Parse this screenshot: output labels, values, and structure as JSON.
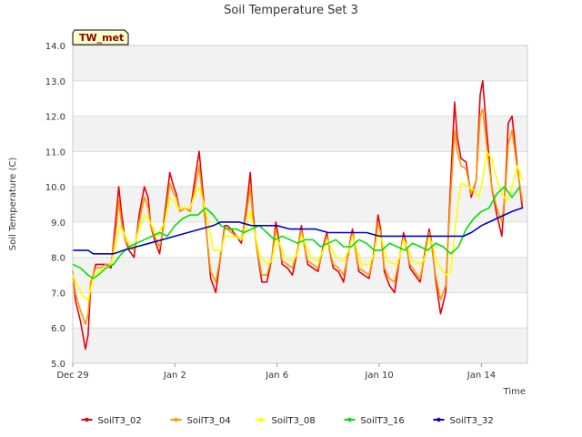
{
  "chart_data": {
    "type": "line",
    "title": "Soil Temperature Set 3",
    "xlabel": "Time",
    "ylabel": "Soil Temperature (C)",
    "station_label": "TW_met",
    "ylim": [
      5.0,
      14.0
    ],
    "xlim": [
      "Dec 29",
      "Jan 15.8"
    ],
    "x_day_range": [
      0,
      17.8
    ],
    "x_ticks": [
      {
        "day": 0,
        "label": "Dec 29"
      },
      {
        "day": 4,
        "label": "Jan 2"
      },
      {
        "day": 8,
        "label": "Jan 6"
      },
      {
        "day": 12,
        "label": "Jan 10"
      },
      {
        "day": 16,
        "label": "Jan 14"
      }
    ],
    "y_ticks": [
      {
        "value": 5.0,
        "label": "5.0"
      },
      {
        "value": 6.0,
        "label": "6.0"
      },
      {
        "value": 7.0,
        "label": "7.0"
      },
      {
        "value": 8.0,
        "label": "8.0"
      },
      {
        "value": 9.0,
        "label": "9.0"
      },
      {
        "value": 10.0,
        "label": "10.0"
      },
      {
        "value": 11.0,
        "label": "11.0"
      },
      {
        "value": 12.0,
        "label": "12.0"
      },
      {
        "value": 13.0,
        "label": "13.0"
      },
      {
        "value": 14.0,
        "label": "14.0"
      }
    ],
    "grid": true,
    "legend_position": "bottom",
    "series": [
      {
        "name": "SoilT3_02",
        "color": "#e8000b",
        "x": [
          0,
          0.1,
          0.3,
          0.5,
          0.6,
          0.7,
          0.9,
          1.1,
          1.3,
          1.5,
          1.7,
          1.8,
          1.9,
          2.05,
          2.2,
          2.4,
          2.6,
          2.8,
          2.95,
          3.05,
          3.2,
          3.4,
          3.6,
          3.8,
          3.95,
          4.05,
          4.2,
          4.4,
          4.6,
          4.8,
          4.95,
          5.05,
          5.2,
          5.4,
          5.6,
          5.8,
          5.95,
          6.05,
          6.2,
          6.4,
          6.6,
          6.8,
          6.95,
          7.05,
          7.2,
          7.4,
          7.6,
          7.8,
          7.95,
          8.05,
          8.2,
          8.4,
          8.6,
          8.8,
          8.95,
          9.05,
          9.2,
          9.4,
          9.6,
          9.8,
          9.95,
          10.05,
          10.2,
          10.4,
          10.6,
          10.8,
          10.95,
          11.05,
          11.2,
          11.4,
          11.6,
          11.8,
          11.95,
          12.05,
          12.2,
          12.4,
          12.6,
          12.8,
          12.95,
          13.05,
          13.2,
          13.4,
          13.6,
          13.8,
          13.95,
          14.05,
          14.2,
          14.4,
          14.6,
          14.8,
          14.95,
          15.05,
          15.2,
          15.4,
          15.6,
          15.8,
          15.95,
          16.05,
          16.2,
          16.4,
          16.6,
          16.8,
          16.95,
          17.05,
          17.2,
          17.4,
          17.6
        ],
        "y": [
          7.6,
          6.8,
          6.2,
          5.4,
          5.8,
          7.2,
          7.8,
          7.8,
          7.8,
          7.7,
          9.2,
          10.0,
          9.3,
          8.5,
          8.2,
          8.0,
          9.2,
          10.0,
          9.7,
          8.9,
          8.5,
          8.1,
          9.2,
          10.4,
          10.0,
          9.8,
          9.3,
          9.4,
          9.3,
          10.3,
          11.0,
          10.2,
          9.0,
          7.4,
          7.0,
          8.1,
          8.9,
          8.9,
          8.8,
          8.6,
          8.4,
          9.4,
          10.4,
          9.3,
          8.3,
          7.3,
          7.3,
          8.0,
          9.0,
          8.6,
          7.8,
          7.7,
          7.5,
          8.2,
          8.9,
          8.4,
          7.8,
          7.7,
          7.6,
          8.3,
          8.7,
          8.2,
          7.7,
          7.6,
          7.3,
          8.2,
          8.8,
          8.3,
          7.6,
          7.5,
          7.4,
          8.2,
          9.2,
          8.8,
          7.6,
          7.2,
          7.0,
          8.0,
          8.7,
          8.4,
          7.7,
          7.5,
          7.3,
          8.2,
          8.8,
          8.4,
          7.4,
          6.4,
          7.0,
          10.2,
          12.4,
          11.4,
          10.8,
          10.7,
          9.7,
          10.2,
          12.6,
          13.0,
          11.6,
          10.0,
          9.2,
          8.6,
          10.2,
          11.8,
          12.0,
          10.6,
          9.4
        ]
      },
      {
        "name": "SoilT3_04",
        "color": "#ff9900",
        "x": [
          0,
          0.1,
          0.3,
          0.5,
          0.6,
          0.7,
          0.9,
          1.1,
          1.3,
          1.5,
          1.7,
          1.8,
          1.9,
          2.05,
          2.2,
          2.4,
          2.6,
          2.8,
          2.95,
          3.05,
          3.2,
          3.4,
          3.6,
          3.8,
          3.95,
          4.05,
          4.2,
          4.4,
          4.6,
          4.8,
          4.95,
          5.05,
          5.2,
          5.4,
          5.6,
          5.8,
          5.95,
          6.05,
          6.2,
          6.4,
          6.6,
          6.8,
          6.95,
          7.05,
          7.2,
          7.4,
          7.6,
          7.8,
          7.95,
          8.05,
          8.2,
          8.4,
          8.6,
          8.8,
          8.95,
          9.05,
          9.2,
          9.4,
          9.6,
          9.8,
          9.95,
          10.05,
          10.2,
          10.4,
          10.6,
          10.8,
          10.95,
          11.05,
          11.2,
          11.4,
          11.6,
          11.8,
          11.95,
          12.05,
          12.2,
          12.4,
          12.6,
          12.8,
          12.95,
          13.05,
          13.2,
          13.4,
          13.6,
          13.8,
          13.95,
          14.05,
          14.2,
          14.4,
          14.6,
          14.8,
          14.95,
          15.05,
          15.2,
          15.4,
          15.6,
          15.8,
          15.95,
          16.05,
          16.2,
          16.4,
          16.6,
          16.8,
          16.95,
          17.05,
          17.2,
          17.4,
          17.6
        ],
        "y": [
          7.6,
          7.0,
          6.5,
          6.1,
          6.4,
          7.3,
          7.7,
          7.7,
          7.8,
          7.8,
          8.8,
          9.6,
          9.0,
          8.5,
          8.3,
          8.2,
          9.0,
          9.7,
          9.4,
          8.9,
          8.6,
          8.3,
          9.0,
          10.1,
          9.8,
          9.7,
          9.3,
          9.4,
          9.3,
          10.0,
          10.6,
          9.9,
          8.9,
          7.6,
          7.3,
          8.1,
          8.8,
          8.8,
          8.7,
          8.6,
          8.5,
          9.2,
          10.0,
          9.1,
          8.3,
          7.5,
          7.5,
          8.0,
          8.8,
          8.5,
          7.9,
          7.8,
          7.7,
          8.2,
          8.8,
          8.4,
          7.9,
          7.8,
          7.7,
          8.2,
          8.6,
          8.2,
          7.8,
          7.7,
          7.5,
          8.1,
          8.7,
          8.3,
          7.7,
          7.6,
          7.5,
          8.1,
          9.0,
          8.7,
          7.7,
          7.4,
          7.3,
          8.0,
          8.6,
          8.3,
          7.8,
          7.6,
          7.4,
          8.1,
          8.7,
          8.3,
          7.5,
          6.8,
          7.2,
          9.8,
          11.6,
          11.0,
          10.6,
          10.5,
          9.8,
          10.2,
          12.0,
          12.2,
          11.2,
          10.0,
          9.4,
          9.0,
          10.0,
          11.2,
          11.6,
          10.5,
          9.6
        ]
      },
      {
        "name": "SoilT3_08",
        "color": "#ffff00",
        "x": [
          0,
          0.2,
          0.4,
          0.6,
          0.8,
          1.0,
          1.3,
          1.5,
          1.7,
          1.85,
          2.0,
          2.2,
          2.4,
          2.6,
          2.8,
          2.95,
          3.1,
          3.3,
          3.6,
          3.8,
          3.95,
          4.1,
          4.3,
          4.6,
          4.8,
          4.95,
          5.1,
          5.3,
          5.5,
          5.8,
          5.95,
          6.1,
          6.3,
          6.6,
          6.8,
          6.95,
          7.1,
          7.3,
          7.6,
          7.8,
          7.95,
          8.1,
          8.3,
          8.6,
          8.8,
          8.95,
          9.1,
          9.3,
          9.6,
          9.8,
          9.95,
          10.1,
          10.3,
          10.6,
          10.8,
          10.95,
          11.1,
          11.3,
          11.6,
          11.8,
          11.95,
          12.1,
          12.3,
          12.6,
          12.8,
          12.95,
          13.1,
          13.3,
          13.6,
          13.8,
          13.95,
          14.1,
          14.3,
          14.6,
          14.8,
          15.0,
          15.2,
          15.5,
          15.7,
          15.9,
          16.05,
          16.2,
          16.4,
          16.6,
          16.8,
          17.0,
          17.2,
          17.4,
          17.6
        ],
        "y": [
          7.5,
          7.2,
          6.9,
          6.8,
          7.4,
          7.6,
          7.7,
          7.8,
          8.4,
          8.9,
          8.7,
          8.4,
          8.3,
          8.8,
          9.2,
          9.1,
          8.9,
          8.6,
          9.0,
          9.7,
          9.6,
          9.4,
          9.4,
          9.4,
          9.8,
          10.0,
          9.6,
          9.0,
          8.2,
          8.2,
          8.6,
          8.6,
          8.6,
          8.5,
          8.8,
          9.3,
          8.8,
          8.1,
          7.8,
          7.9,
          8.5,
          8.4,
          8.0,
          7.9,
          8.1,
          8.6,
          8.4,
          8.0,
          7.9,
          8.2,
          8.5,
          8.3,
          8.0,
          7.9,
          8.2,
          8.6,
          8.3,
          7.8,
          7.8,
          8.1,
          8.7,
          8.5,
          7.9,
          7.8,
          8.0,
          8.5,
          8.3,
          7.9,
          7.8,
          8.0,
          8.6,
          8.3,
          7.8,
          7.5,
          7.6,
          9.0,
          10.1,
          10.0,
          9.9,
          9.7,
          10.2,
          11.0,
          10.8,
          10.2,
          9.8,
          9.6,
          10.0,
          10.6,
          10.2
        ]
      },
      {
        "name": "SoilT3_16",
        "color": "#00e000",
        "x": [
          0,
          0.3,
          0.6,
          0.8,
          1.0,
          1.3,
          1.6,
          1.9,
          2.2,
          2.5,
          2.8,
          3.1,
          3.4,
          3.7,
          4.0,
          4.3,
          4.6,
          4.9,
          5.2,
          5.5,
          5.8,
          6.1,
          6.4,
          6.7,
          7.0,
          7.3,
          7.6,
          7.9,
          8.2,
          8.5,
          8.8,
          9.1,
          9.4,
          9.7,
          10.0,
          10.3,
          10.6,
          10.9,
          11.2,
          11.5,
          11.8,
          12.1,
          12.4,
          12.7,
          13.0,
          13.3,
          13.6,
          13.9,
          14.2,
          14.5,
          14.8,
          15.1,
          15.4,
          15.7,
          16.0,
          16.3,
          16.6,
          16.9,
          17.2,
          17.5
        ],
        "y": [
          7.8,
          7.7,
          7.5,
          7.4,
          7.5,
          7.7,
          7.8,
          8.1,
          8.3,
          8.4,
          8.5,
          8.6,
          8.7,
          8.6,
          8.9,
          9.1,
          9.2,
          9.2,
          9.4,
          9.2,
          8.9,
          8.8,
          8.8,
          8.7,
          8.8,
          8.9,
          8.7,
          8.5,
          8.6,
          8.5,
          8.4,
          8.5,
          8.5,
          8.3,
          8.4,
          8.5,
          8.3,
          8.3,
          8.5,
          8.4,
          8.2,
          8.2,
          8.4,
          8.3,
          8.2,
          8.4,
          8.3,
          8.2,
          8.4,
          8.3,
          8.1,
          8.3,
          8.8,
          9.1,
          9.3,
          9.4,
          9.8,
          10.0,
          9.7,
          10.0
        ]
      },
      {
        "name": "SoilT3_32",
        "color": "#0000cc",
        "x": [
          0,
          0.3,
          0.6,
          0.8,
          1.0,
          1.3,
          1.6,
          2.0,
          2.5,
          3.0,
          3.5,
          4.0,
          4.5,
          5.0,
          5.5,
          5.8,
          6.0,
          6.5,
          7.0,
          7.5,
          8.0,
          8.5,
          9.0,
          9.5,
          10.0,
          10.5,
          11.0,
          11.5,
          12.0,
          12.5,
          13.0,
          13.5,
          14.0,
          14.5,
          15.0,
          15.3,
          15.6,
          16.0,
          16.3,
          16.6,
          16.9,
          17.2,
          17.6
        ],
        "y": [
          8.2,
          8.2,
          8.2,
          8.1,
          8.1,
          8.1,
          8.1,
          8.2,
          8.3,
          8.4,
          8.5,
          8.6,
          8.7,
          8.8,
          8.9,
          9.0,
          9.0,
          9.0,
          8.9,
          8.9,
          8.9,
          8.8,
          8.8,
          8.8,
          8.7,
          8.7,
          8.7,
          8.7,
          8.6,
          8.6,
          8.6,
          8.6,
          8.6,
          8.6,
          8.6,
          8.6,
          8.7,
          8.9,
          9.0,
          9.1,
          9.2,
          9.3,
          9.4
        ]
      }
    ]
  }
}
